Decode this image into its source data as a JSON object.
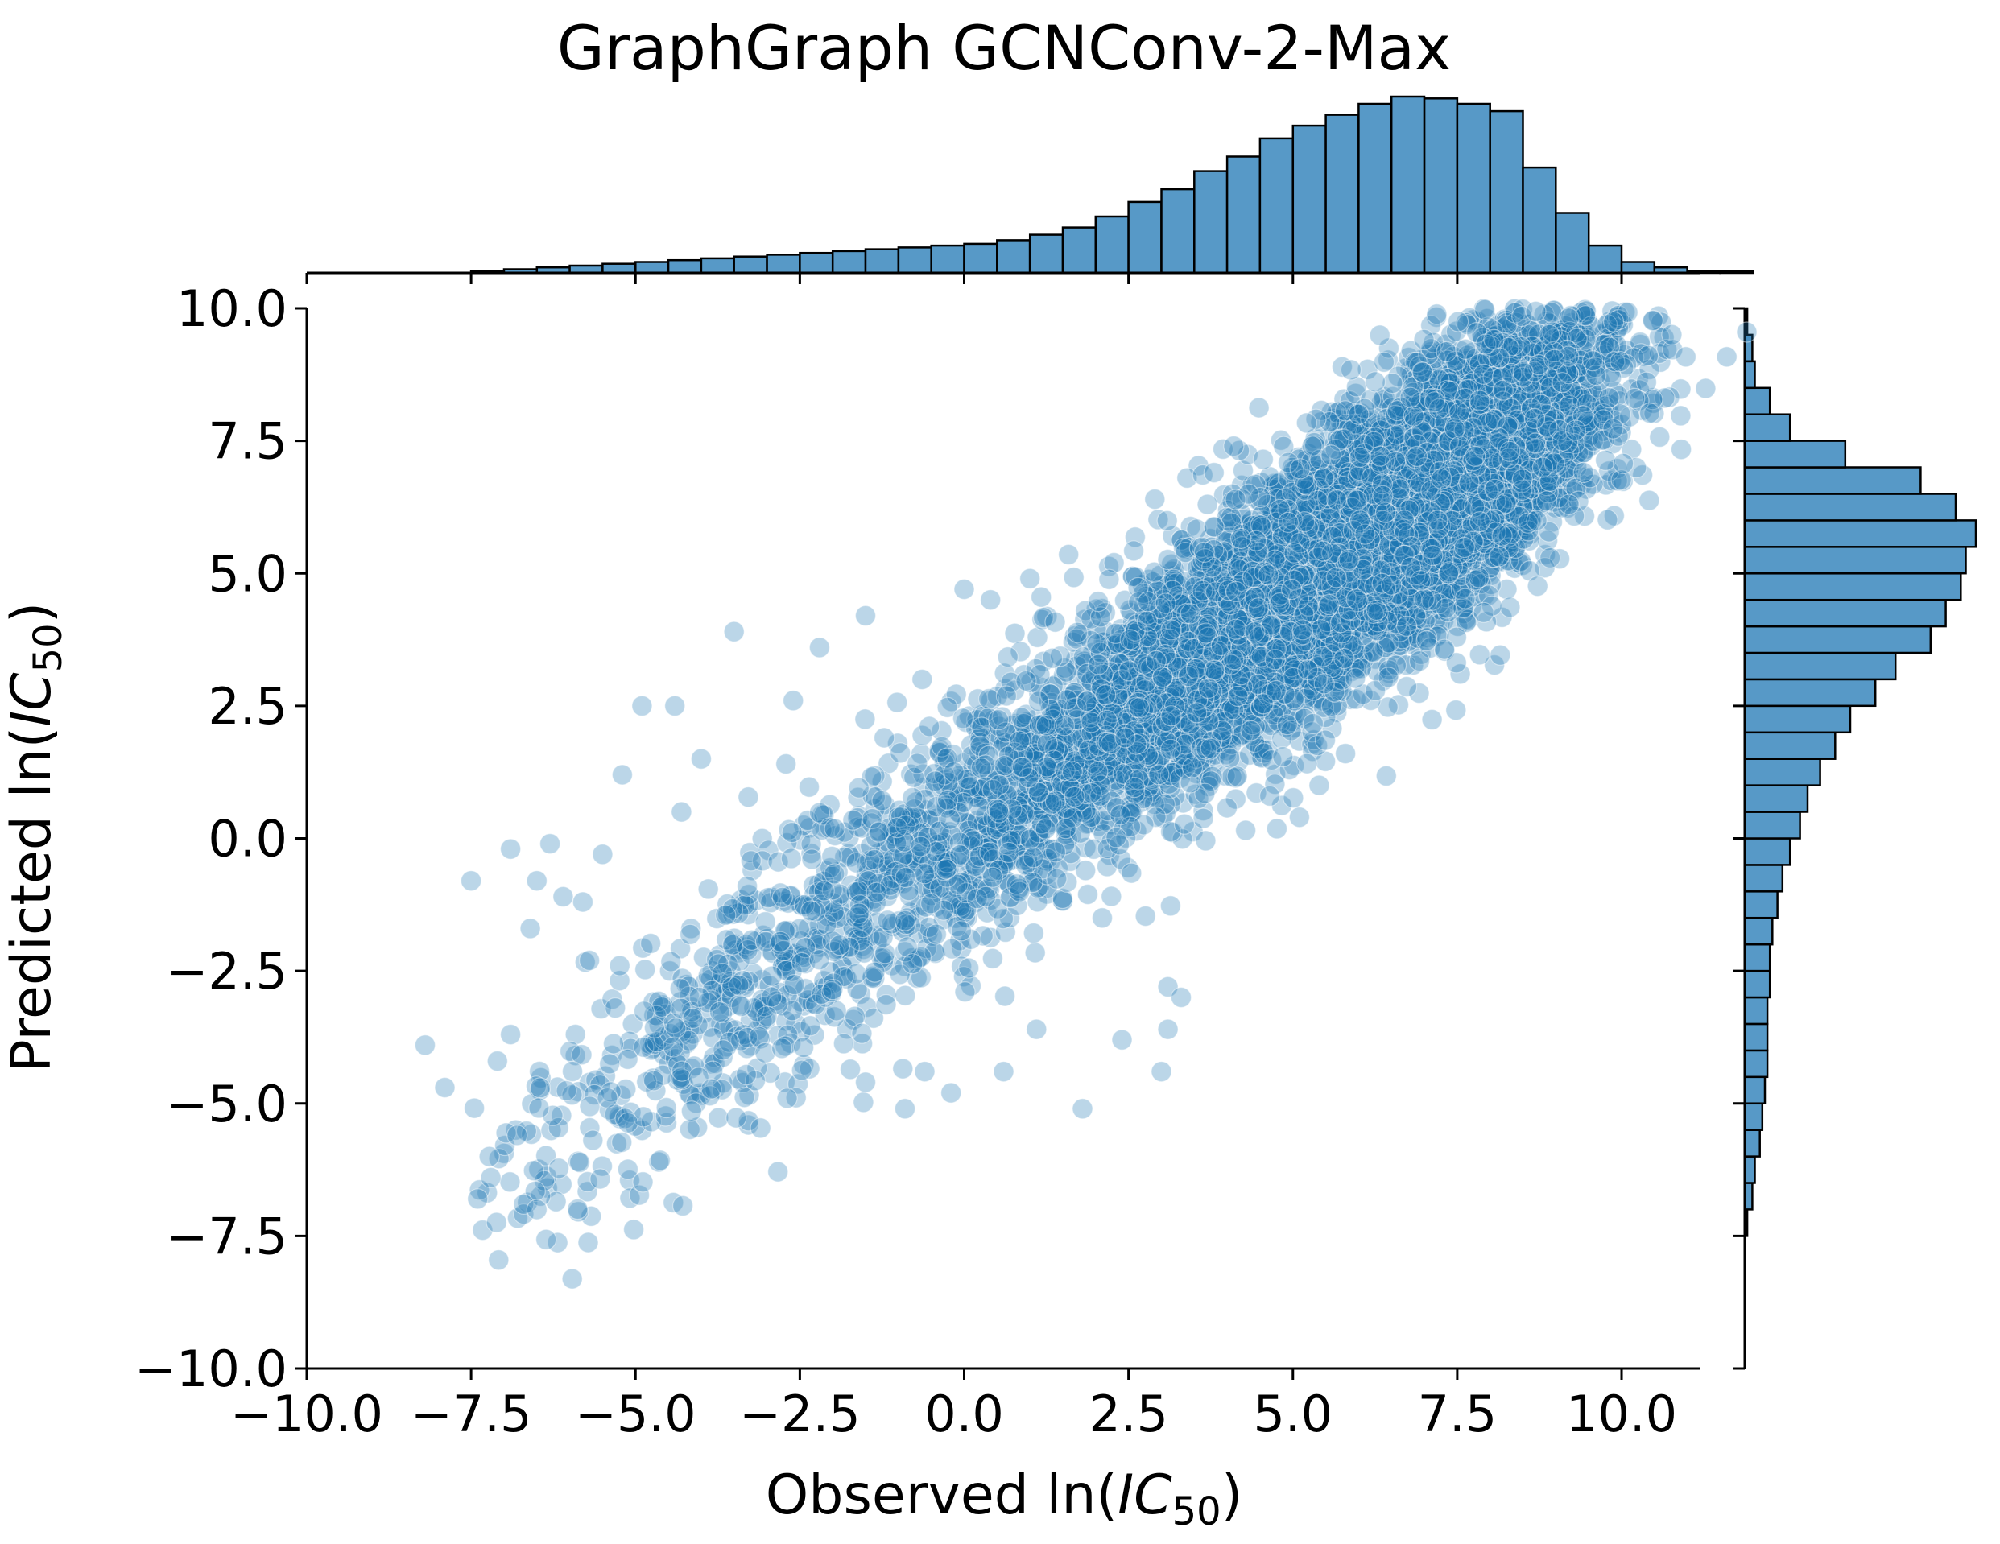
{
  "chart_data": {
    "type": "scatter",
    "title": "GraphGraph GCNConv-2-Max",
    "xlabel": {
      "prefix": "Observed ln(",
      "var": "IC",
      "sub": "50",
      "suffix": ")"
    },
    "ylabel": {
      "prefix": "Predicted ln(",
      "var": "IC",
      "sub": "50",
      "suffix": ")"
    },
    "xlim": [
      -10.0,
      11.2
    ],
    "ylim": [
      -10.0,
      10.0
    ],
    "xticks": [
      -10.0,
      -7.5,
      -5.0,
      -2.5,
      0.0,
      2.5,
      5.0,
      7.5,
      10.0
    ],
    "yticks": [
      -10.0,
      -7.5,
      -5.0,
      -2.5,
      0.0,
      2.5,
      5.0,
      7.5,
      10.0
    ],
    "xtick_labels": [
      "−10.0",
      "−7.5",
      "−5.0",
      "−2.5",
      "0.0",
      "2.5",
      "5.0",
      "7.5",
      "10.0"
    ],
    "ytick_labels": [
      "−10.0",
      "−7.5",
      "−5.0",
      "−2.5",
      "0.0",
      "2.5",
      "5.0",
      "7.5",
      "10.0"
    ],
    "point_color": "#1f77b4",
    "point_alpha": 0.3,
    "bar_color": "#5799c7",
    "grid": false,
    "trend": {
      "slope": 0.9,
      "intercept": 0.1,
      "spread": 1.2
    },
    "approx_points": 9000,
    "outliers": [
      [
        -8.2,
        -3.9
      ],
      [
        -7.9,
        -4.7
      ],
      [
        -7.5,
        -0.8
      ],
      [
        -7.4,
        -6.8
      ],
      [
        -7.2,
        -6.4
      ],
      [
        -7.1,
        -4.2
      ],
      [
        -6.9,
        -0.2
      ],
      [
        -6.9,
        -3.7
      ],
      [
        -6.8,
        -5.6
      ],
      [
        -6.7,
        -6.9
      ],
      [
        -6.6,
        -1.7
      ],
      [
        -6.5,
        -7.0
      ],
      [
        -6.5,
        -0.8
      ],
      [
        -6.3,
        -0.1
      ],
      [
        -6.1,
        -1.1
      ],
      [
        -5.8,
        -1.2
      ],
      [
        -5.7,
        -2.3
      ],
      [
        -5.5,
        -0.3
      ],
      [
        -5.2,
        1.2
      ],
      [
        -4.9,
        2.5
      ],
      [
        -4.4,
        2.5
      ],
      [
        -4.0,
        1.5
      ],
      [
        -4.3,
        0.5
      ],
      [
        -3.5,
        3.9
      ],
      [
        -3.3,
        -0.9
      ],
      [
        -2.6,
        2.6
      ],
      [
        -2.2,
        3.6
      ],
      [
        -1.5,
        -4.6
      ],
      [
        -1.5,
        4.2
      ],
      [
        -0.9,
        -5.1
      ],
      [
        -0.6,
        -4.4
      ],
      [
        -0.2,
        -4.8
      ],
      [
        0.0,
        4.7
      ],
      [
        0.4,
        4.5
      ],
      [
        0.6,
        -4.4
      ],
      [
        1.1,
        -3.6
      ],
      [
        1.0,
        4.9
      ],
      [
        1.8,
        -5.1
      ],
      [
        2.1,
        -1.5
      ],
      [
        2.4,
        -3.8
      ],
      [
        3.0,
        -4.4
      ],
      [
        3.1,
        -3.6
      ],
      [
        3.1,
        -2.8
      ],
      [
        3.3,
        -3.0
      ],
      [
        2.9,
        6.4
      ],
      [
        3.7,
        6.3
      ],
      [
        3.8,
        6.9
      ],
      [
        4.1,
        7.4
      ],
      [
        5.1,
        0.4
      ],
      [
        5.4,
        1.0
      ],
      [
        5.8,
        1.6
      ],
      [
        5.9,
        7.7
      ],
      [
        6.0,
        8.0
      ],
      [
        7.2,
        6.0
      ],
      [
        8.3,
        7.3
      ],
      [
        8.5,
        8.8
      ],
      [
        8.8,
        7.0
      ],
      [
        9.1,
        7.5
      ],
      [
        9.2,
        6.3
      ],
      [
        9.3,
        7.7
      ],
      [
        10.2,
        8.3
      ],
      [
        9.1,
        8.6
      ]
    ],
    "marginal_x": {
      "bin_edges_start": -10.0,
      "bin_width": 0.5,
      "counts": [
        0,
        0,
        0,
        0,
        0,
        1,
        2,
        3,
        4,
        5,
        6,
        7,
        8,
        9,
        10,
        11,
        12,
        13,
        14,
        15,
        16,
        18,
        21,
        25,
        31,
        39,
        46,
        56,
        64,
        74,
        81,
        87,
        93,
        97,
        96,
        93,
        89,
        58,
        33,
        15,
        6,
        3,
        1,
        1,
        0,
        0,
        0,
        0,
        0,
        0
      ]
    },
    "marginal_y": {
      "bin_edges_start": -7.5,
      "bin_width": 0.5,
      "counts": [
        1,
        3,
        4,
        6,
        7,
        8,
        9,
        9,
        9,
        10,
        10,
        11,
        13,
        15,
        18,
        22,
        25,
        30,
        36,
        42,
        52,
        60,
        74,
        80,
        86,
        88,
        92,
        84,
        70,
        40,
        18,
        10,
        4,
        3,
        1,
        0
      ]
    }
  }
}
